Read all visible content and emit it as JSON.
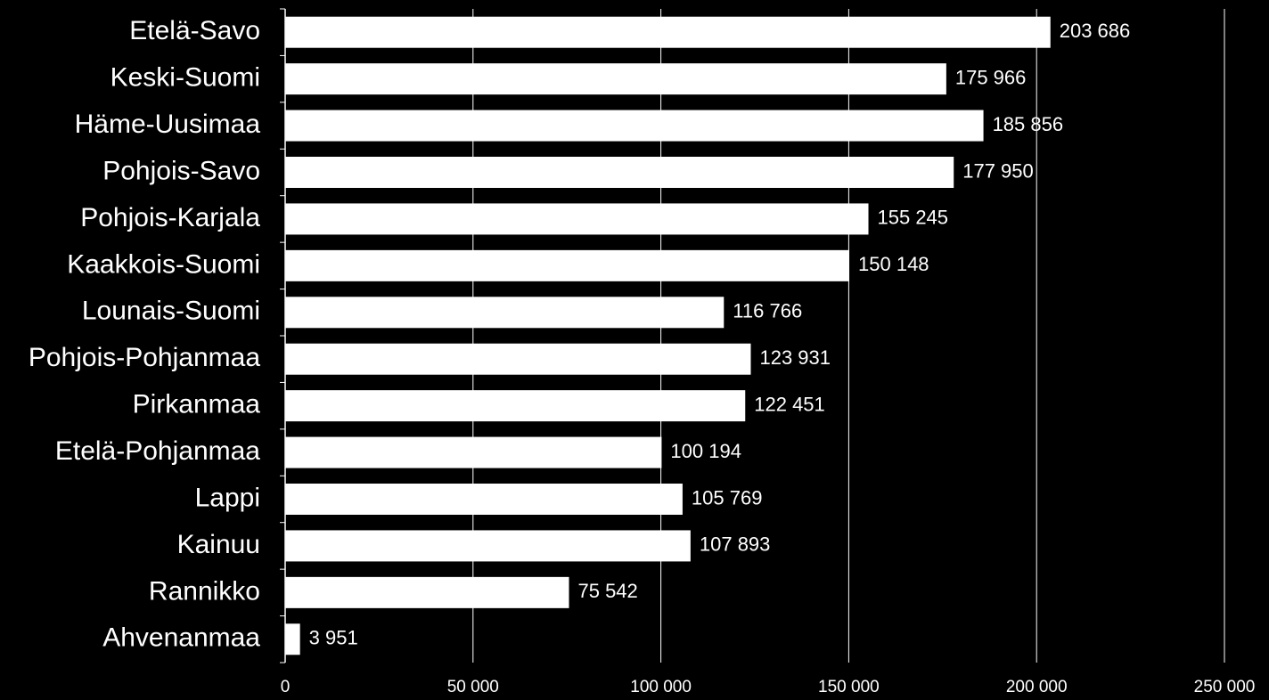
{
  "chart_data": {
    "type": "bar",
    "orientation": "horizontal",
    "categories": [
      "Etelä-Savo",
      "Keski-Suomi",
      "Häme-Uusimaa",
      "Pohjois-Savo",
      "Pohjois-Karjala",
      "Kaakkois-Suomi",
      "Lounais-Suomi",
      "Pohjois-Pohjanmaa",
      "Pirkanmaa",
      "Etelä-Pohjanmaa",
      "Lappi",
      "Kainuu",
      "Rannikko",
      "Ahvenanmaa"
    ],
    "values": [
      203686,
      175966,
      185856,
      177950,
      155245,
      150148,
      116766,
      123931,
      122451,
      100194,
      105769,
      107893,
      75542,
      3951
    ],
    "value_labels": [
      "203 686",
      "175 966",
      "185 856",
      "177 950",
      "155 245",
      "150 148",
      "116 766",
      "123 931",
      "122 451",
      "100 194",
      "105 769",
      "107 893",
      "75 542",
      "3 951"
    ],
    "color": "#ffffff",
    "xlim": [
      0,
      250000
    ],
    "xticks": [
      0,
      {
        "value": 50000,
        "label": "50 000"
      },
      {
        "value": 100000,
        "label": "100 000"
      },
      {
        "value": 150000,
        "label": "150 000"
      },
      {
        "value": 200000,
        "label": "200 000"
      },
      {
        "value": 250000,
        "label": "250 000"
      }
    ],
    "grid": true
  }
}
